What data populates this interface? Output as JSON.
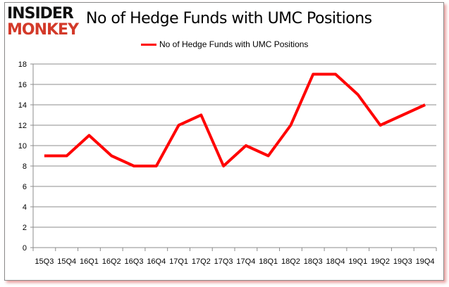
{
  "logo": {
    "line1": "INSIDER",
    "line2": "MONKEY"
  },
  "chart_data": {
    "type": "line",
    "title": "No of Hedge Funds with UMC Positions",
    "categories": [
      "15Q3",
      "15Q4",
      "16Q1",
      "16Q2",
      "16Q3",
      "16Q4",
      "17Q1",
      "17Q2",
      "17Q3",
      "17Q4",
      "18Q1",
      "18Q2",
      "18Q3",
      "18Q4",
      "19Q1",
      "19Q2",
      "19Q3",
      "19Q4"
    ],
    "series": [
      {
        "name": "No of Hedge Funds with UMC Positions",
        "values": [
          9,
          9,
          11,
          9,
          8,
          8,
          12,
          13,
          8,
          10,
          9,
          12,
          17,
          17,
          15,
          12,
          13,
          14
        ],
        "color": "#ff0000"
      }
    ],
    "ylim": [
      0,
      18
    ],
    "yticks": [
      0,
      2,
      4,
      6,
      8,
      10,
      12,
      14,
      16,
      18
    ],
    "grid": true,
    "legend": "top"
  }
}
